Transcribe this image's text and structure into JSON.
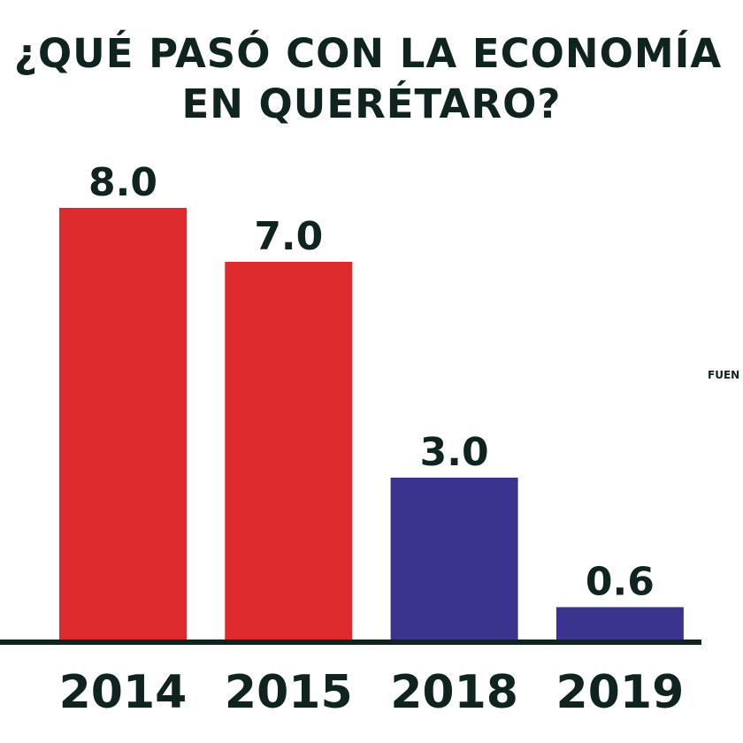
{
  "title": {
    "line1": "¿QUÉ PASÓ CON LA ECONOMÍA",
    "line2": "EN QUERÉTARO?"
  },
  "source_label": "FUEN",
  "colors": {
    "red": "#dc2a2d",
    "blue": "#3b348e",
    "text": "#0f2320",
    "axis": "#0f2320"
  },
  "chart_data": {
    "type": "bar",
    "title": "¿QUÉ PASÓ CON LA ECONOMÍA EN QUERÉTARO?",
    "xlabel": "",
    "ylabel": "",
    "categories": [
      "2014",
      "2015",
      "2018",
      "2019"
    ],
    "values": [
      8.0,
      7.0,
      3.0,
      0.6
    ],
    "value_labels": [
      "8.0",
      "7.0",
      "3.0",
      "0.6"
    ],
    "bar_colors": [
      "#dc2a2d",
      "#dc2a2d",
      "#3b348e",
      "#3b348e"
    ],
    "ylim": [
      0,
      8.0
    ],
    "grid": false,
    "legend": "none"
  }
}
